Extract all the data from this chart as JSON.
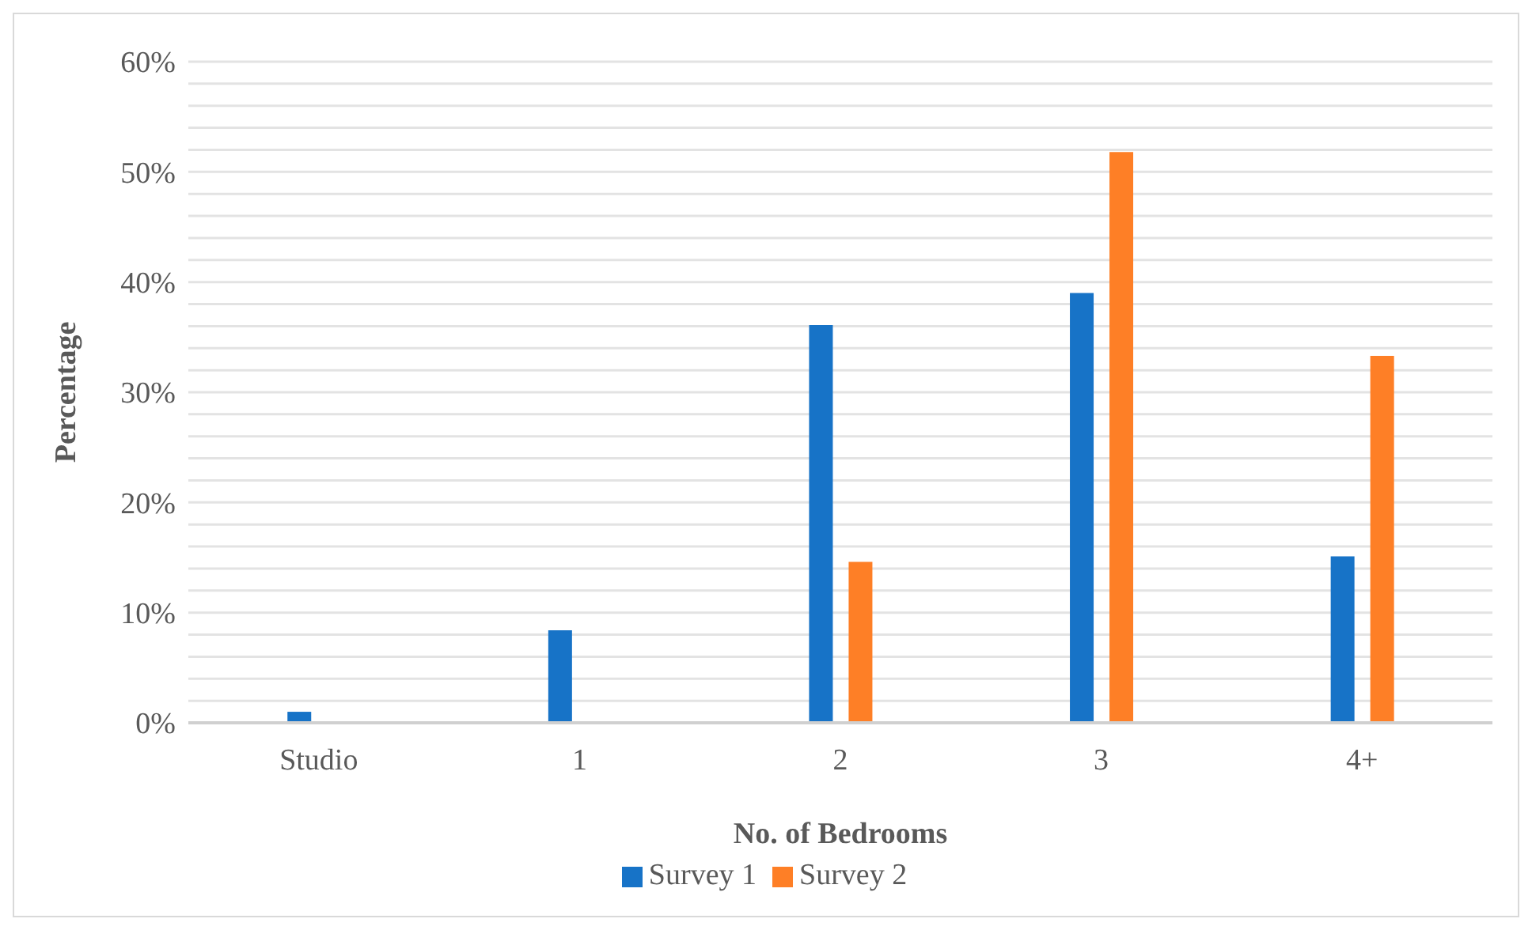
{
  "chart_data": {
    "type": "bar",
    "xlabel": "No. of Bedrooms",
    "ylabel": "Percentage",
    "categories": [
      "Studio",
      "1",
      "2",
      "3",
      "4+"
    ],
    "series": [
      {
        "name": "Survey 1",
        "color": "#1773c7",
        "values": [
          1,
          8.4,
          36.1,
          39,
          15.1
        ]
      },
      {
        "name": "Survey 2",
        "color": "#fe7f26",
        "values": [
          null,
          null,
          14.6,
          51.8,
          33.3
        ]
      }
    ],
    "ylim": [
      0,
      60
    ],
    "yticks": [
      {
        "value": 0,
        "label": "0%"
      },
      {
        "value": 2,
        "label": null
      },
      {
        "value": 4,
        "label": null
      },
      {
        "value": 6,
        "label": null
      },
      {
        "value": 8,
        "label": null
      },
      {
        "value": 10,
        "label": "10%"
      },
      {
        "value": 12,
        "label": null
      },
      {
        "value": 14,
        "label": null
      },
      {
        "value": 16,
        "label": null
      },
      {
        "value": 18,
        "label": null
      },
      {
        "value": 20,
        "label": "20%"
      },
      {
        "value": 22,
        "label": null
      },
      {
        "value": 24,
        "label": null
      },
      {
        "value": 26,
        "label": null
      },
      {
        "value": 28,
        "label": null
      },
      {
        "value": 30,
        "label": "30%"
      },
      {
        "value": 32,
        "label": null
      },
      {
        "value": 34,
        "label": null
      },
      {
        "value": 36,
        "label": null
      },
      {
        "value": 38,
        "label": null
      },
      {
        "value": 40,
        "label": "40%"
      },
      {
        "value": 42,
        "label": null
      },
      {
        "value": 44,
        "label": null
      },
      {
        "value": 46,
        "label": null
      },
      {
        "value": 48,
        "label": null
      },
      {
        "value": 50,
        "label": "50%"
      },
      {
        "value": 52,
        "label": null
      },
      {
        "value": 54,
        "label": null
      },
      {
        "value": 56,
        "label": null
      },
      {
        "value": 58,
        "label": null
      },
      {
        "value": 60,
        "label": "60%"
      }
    ],
    "grid": "y",
    "legend": "bottom"
  }
}
